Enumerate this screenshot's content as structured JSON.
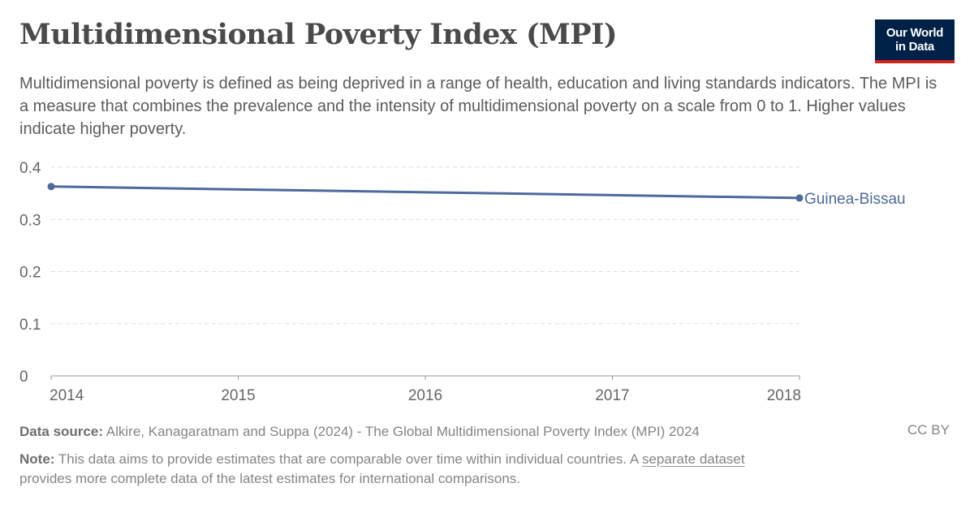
{
  "header": {
    "title": "Multidimensional Poverty Index (MPI)",
    "subtitle": "Multidimensional poverty is defined as being deprived in a range of health, education and living standards indicators. The MPI is a measure that combines the prevalence and the intensity of multidimensional poverty on a scale from 0 to 1. Higher values indicate higher poverty.",
    "logo_line1": "Our World",
    "logo_line2": "in Data"
  },
  "chart_data": {
    "type": "line",
    "title": "Multidimensional Poverty Index (MPI)",
    "x": [
      2014,
      2018
    ],
    "series": [
      {
        "name": "Guinea-Bissau",
        "color": "#4c6a9c",
        "values": [
          0.363,
          0.341
        ]
      }
    ],
    "xlim": [
      2014,
      2018
    ],
    "ylim": [
      0,
      0.4
    ],
    "xticks": [
      "2014",
      "2015",
      "2016",
      "2017",
      "2018"
    ],
    "yticks": [
      "0",
      "0.1",
      "0.2",
      "0.3",
      "0.4"
    ],
    "grid": "horizontal-dashed",
    "legend": "inline-right"
  },
  "footer": {
    "source_label": "Data source:",
    "source_text": "Alkire, Kanagaratnam and Suppa (2024) - The Global Multidimensional Poverty Index (MPI) 2024",
    "license": "CC BY",
    "note_label": "Note:",
    "note_text_before": "This data aims to provide estimates that are comparable over time within individual countries. A",
    "note_link": "separate dataset",
    "note_text_after": "provides more complete data of the latest estimates for international comparisons."
  }
}
